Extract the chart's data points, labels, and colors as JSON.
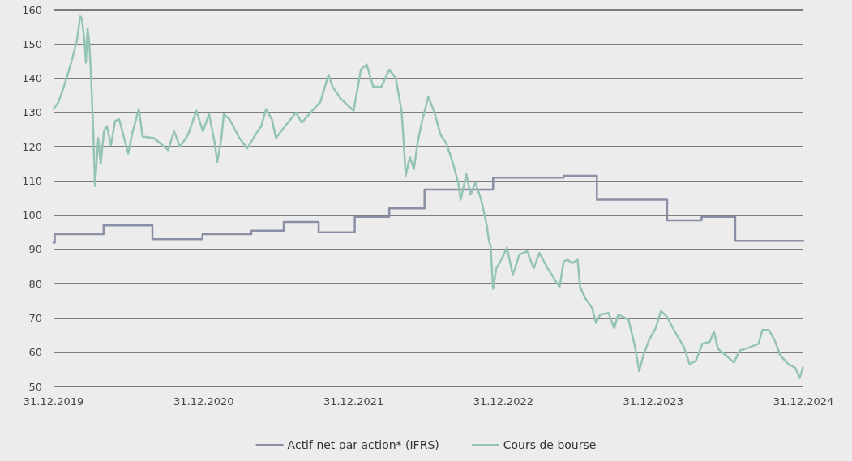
{
  "chart_data": {
    "type": "line",
    "xlim": [
      "2019-12-31",
      "2024-12-31"
    ],
    "xticks": [
      {
        "value": "2019-12-31",
        "label": "31.12.2019"
      },
      {
        "value": "2020-12-31",
        "label": "31.12.2020"
      },
      {
        "value": "2021-12-31",
        "label": "31.12.2021"
      },
      {
        "value": "2022-12-31",
        "label": "31.12.2022"
      },
      {
        "value": "2023-12-31",
        "label": "31.12.2023"
      },
      {
        "value": "2024-12-31",
        "label": "31.12.2024"
      }
    ],
    "ylim": [
      50,
      160
    ],
    "yticks": [
      50,
      60,
      70,
      80,
      90,
      100,
      110,
      120,
      130,
      140,
      150,
      160
    ],
    "grid": "y",
    "legend": "bottom",
    "marker": "none",
    "line_style": "solid",
    "series": [
      {
        "name": "Actif net par action* (IFRS)",
        "type": "step",
        "color": "#8b8fa6",
        "x": [
          "2019-12-31",
          "2020-01-03",
          "2020-05-01",
          "2020-08-28",
          "2020-12-28",
          "2021-04-26",
          "2021-07-14",
          "2021-10-07",
          "2022-01-03",
          "2022-03-28",
          "2022-06-22",
          "2022-12-06",
          "2023-05-27",
          "2023-08-16",
          "2024-02-03",
          "2024-04-27",
          "2024-07-18",
          "2024-12-31"
        ],
        "values": [
          92,
          94.5,
          97,
          93,
          94.5,
          95.5,
          98,
          95,
          99.5,
          102,
          107.5,
          111,
          111.5,
          104.5,
          98.5,
          99.5,
          92.5,
          92.5
        ]
      },
      {
        "name": "Cours de bourse",
        "color": "#94c4b4",
        "x": [
          "2019-12-31",
          "2020-01-12",
          "2020-01-28",
          "2020-02-12",
          "2020-02-26",
          "2020-03-05",
          "2020-03-09",
          "2020-03-15",
          "2020-03-19",
          "2020-03-23",
          "2020-03-27",
          "2020-03-31",
          "2020-04-06",
          "2020-04-10",
          "2020-04-18",
          "2020-04-24",
          "2020-05-02",
          "2020-05-09",
          "2020-05-19",
          "2020-05-29",
          "2020-06-08",
          "2020-06-18",
          "2020-06-30",
          "2020-07-10",
          "2020-07-26",
          "2020-08-04",
          "2020-09-01",
          "2020-09-21",
          "2020-10-05",
          "2020-10-20",
          "2020-11-03",
          "2020-11-23",
          "2020-12-13",
          "2020-12-29",
          "2021-01-13",
          "2021-01-27",
          "2021-02-02",
          "2021-02-12",
          "2021-02-18",
          "2021-03-04",
          "2021-03-28",
          "2021-04-16",
          "2021-05-06",
          "2021-05-20",
          "2021-06-01",
          "2021-06-15",
          "2021-06-25",
          "2021-07-04",
          "2021-07-24",
          "2021-08-13",
          "2021-08-27",
          "2021-09-21",
          "2021-10-11",
          "2021-10-31",
          "2021-11-10",
          "2021-11-30",
          "2021-12-31",
          "2022-01-18",
          "2022-02-01",
          "2022-02-17",
          "2022-03-09",
          "2022-03-28",
          "2022-04-13",
          "2022-04-27",
          "2022-05-03",
          "2022-05-07",
          "2022-05-17",
          "2022-05-27",
          "2022-06-05",
          "2022-06-15",
          "2022-07-01",
          "2022-07-15",
          "2022-07-31",
          "2022-08-14",
          "2022-08-24",
          "2022-09-02",
          "2022-09-12",
          "2022-09-18",
          "2022-10-02",
          "2022-10-12",
          "2022-10-24",
          "2022-11-07",
          "2022-11-20",
          "2022-11-26",
          "2022-11-30",
          "2022-12-06",
          "2022-12-14",
          "2022-12-26",
          "2023-01-09",
          "2023-01-23",
          "2023-02-08",
          "2023-02-27",
          "2023-03-15",
          "2023-03-29",
          "2023-04-18",
          "2023-05-17",
          "2023-05-27",
          "2023-06-06",
          "2023-06-16",
          "2023-06-30",
          "2023-07-06",
          "2023-07-20",
          "2023-08-04",
          "2023-08-14",
          "2023-08-24",
          "2023-09-13",
          "2023-09-27",
          "2023-10-07",
          "2023-11-01",
          "2023-11-17",
          "2023-11-27",
          "2023-12-07",
          "2023-12-21",
          "2024-01-06",
          "2024-01-19",
          "2024-02-02",
          "2024-02-22",
          "2024-03-15",
          "2024-03-29",
          "2024-04-13",
          "2024-04-29",
          "2024-05-17",
          "2024-05-27",
          "2024-06-06",
          "2024-06-26",
          "2024-07-15",
          "2024-07-29",
          "2024-08-24",
          "2024-09-13",
          "2024-09-22",
          "2024-10-08",
          "2024-10-22",
          "2024-11-05",
          "2024-11-25",
          "2024-12-11",
          "2024-12-22",
          "2024-12-30"
        ],
        "values": [
          131,
          133,
          138.5,
          144.5,
          151,
          158,
          157.5,
          151.5,
          144.5,
          154.5,
          150.5,
          142,
          124,
          108.5,
          122.5,
          115,
          124.5,
          126,
          120.5,
          127.5,
          128,
          123.5,
          118,
          124,
          131,
          123,
          122.5,
          120.5,
          119,
          124.5,
          120,
          123.5,
          130.5,
          124.5,
          129.5,
          121,
          115.5,
          122.5,
          129.5,
          128,
          122.5,
          119.5,
          123.5,
          126,
          131,
          128,
          122.5,
          124,
          127,
          130,
          127,
          130.5,
          133,
          141,
          137.5,
          134,
          130.5,
          142.5,
          144,
          137.5,
          137.5,
          142.5,
          140,
          130.5,
          120,
          111.5,
          117,
          113.5,
          121,
          127,
          134.5,
          130.5,
          123.5,
          121,
          117.5,
          114,
          109.5,
          104.5,
          112,
          106,
          109.5,
          104.5,
          97.5,
          92.5,
          91,
          78.5,
          84.5,
          87,
          90.5,
          82.5,
          88.5,
          89.5,
          84.5,
          89,
          84.5,
          79,
          86.5,
          87,
          86,
          87,
          79,
          75.5,
          73,
          68.5,
          71,
          71.5,
          67,
          71,
          69.5,
          61.5,
          54.5,
          59,
          63.5,
          67,
          72,
          70.5,
          66,
          61.5,
          56.5,
          57.5,
          62.5,
          63,
          66,
          61,
          59,
          57,
          60.5,
          61.5,
          62.5,
          66.5,
          66.5,
          63.5,
          59,
          56.5,
          55.5,
          52.5,
          55.5
        ]
      }
    ]
  }
}
